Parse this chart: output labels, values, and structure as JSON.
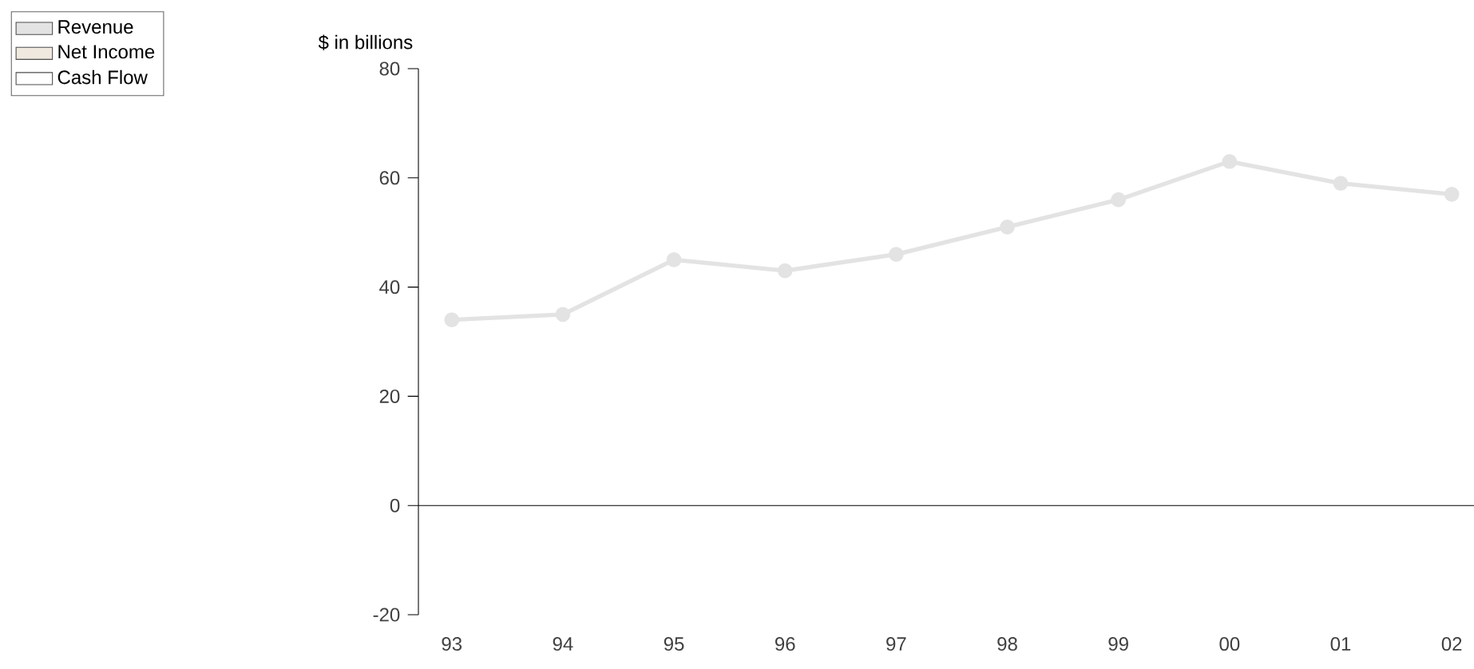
{
  "chart_data": {
    "type": "line",
    "ylabel": "$ in billions",
    "categories": [
      "93",
      "94",
      "95",
      "96",
      "97",
      "98",
      "99",
      "00",
      "01",
      "02"
    ],
    "series": [
      {
        "name": "Revenue",
        "color": "#e3e3e3",
        "values": [
          34,
          35,
          45,
          43,
          46,
          51,
          56,
          63,
          59,
          57
        ]
      },
      {
        "name": "Net Income",
        "color": "#efe9df",
        "values": [
          null,
          null,
          null,
          null,
          null,
          null,
          null,
          null,
          null,
          null
        ]
      },
      {
        "name": "Cash Flow",
        "color": "#ffffff",
        "values": [
          null,
          null,
          null,
          null,
          null,
          null,
          null,
          null,
          null,
          null
        ]
      }
    ],
    "ylim": [
      -20,
      80
    ],
    "yticks": [
      -20,
      0,
      20,
      40,
      60,
      80
    ],
    "marker": "circle",
    "legend": "top left"
  }
}
